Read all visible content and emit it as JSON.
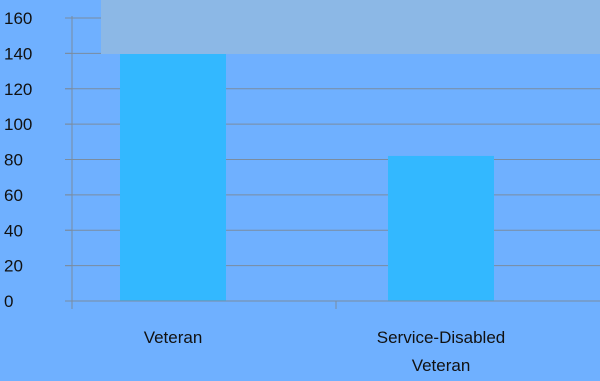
{
  "colors": {
    "background": "#6fb0ff",
    "bar": "#33b8ff",
    "gridline": "#7a8ca0",
    "legend_box": "#8cb8e6"
  },
  "chart_data": {
    "type": "bar",
    "categories": [
      "Veteran",
      "Service-Disabled Veteran"
    ],
    "category_lines": [
      [
        "Veteran"
      ],
      [
        "Service-Disabled",
        "Veteran"
      ]
    ],
    "values": [
      140,
      82
    ],
    "ylim": [
      0,
      160
    ],
    "yticks": [
      "0",
      "20",
      "40",
      "60",
      "80",
      "100",
      "120",
      "140",
      "160"
    ],
    "grid": true,
    "title": "",
    "xlabel": "",
    "ylabel": ""
  }
}
